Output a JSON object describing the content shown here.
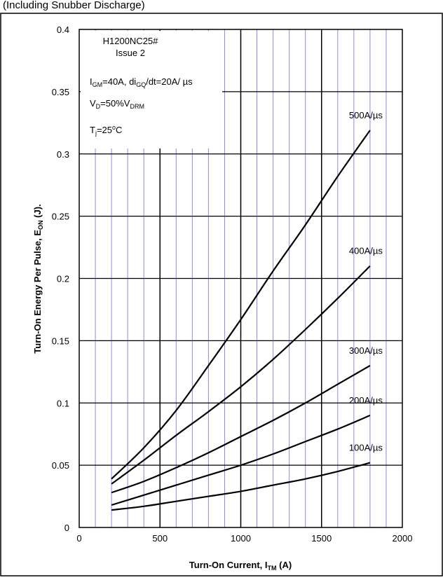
{
  "header_text": "(Including Snubber Discharge)",
  "chart_data": {
    "type": "line",
    "xlabel": "Turn-On Current, I",
    "xlabel_sub": "TM",
    "xlabel_unit": " (A)",
    "ylabel": "Turn-On Energy Per Pulse, E",
    "ylabel_sub": "ON",
    "ylabel_unit": " (J).",
    "xlim": [
      0,
      2000
    ],
    "ylim": [
      0,
      0.4
    ],
    "x_ticks": [
      "0",
      "500",
      "1000",
      "1500",
      "2000"
    ],
    "y_ticks": [
      "0",
      "0.05",
      "0.1",
      "0.15",
      "0.2",
      "0.25",
      "0.3",
      "0.35",
      "0.4"
    ],
    "grid": true,
    "legend_lines": {
      "device": "H1200NC25#",
      "issue": "Issue 2",
      "igm": "I",
      "igm_sub": "GM",
      "igm_rest": "=40A, di",
      "digq_sub": "GQ",
      "digq_rest": "/dt=20A/ µs",
      "vd": "V",
      "vd_sub": "D",
      "vd_rest": "=50%V",
      "vdrm_sub": "DRM",
      "tj": "T",
      "tj_sub": "j",
      "tj_rest": "=25",
      "tj_sup": "o",
      "tj_unit": "C"
    },
    "series": [
      {
        "name": "500A/µs",
        "x": [
          200,
          400,
          600,
          800,
          1000,
          1200,
          1400,
          1600,
          1800
        ],
        "y": [
          0.039,
          0.064,
          0.094,
          0.13,
          0.167,
          0.206,
          0.243,
          0.282,
          0.319
        ]
      },
      {
        "name": "400A/µs",
        "x": [
          200,
          400,
          600,
          800,
          1000,
          1200,
          1400,
          1600,
          1800
        ],
        "y": [
          0.035,
          0.054,
          0.074,
          0.093,
          0.113,
          0.135,
          0.159,
          0.184,
          0.21
        ]
      },
      {
        "name": "300A/µs",
        "x": [
          200,
          400,
          600,
          800,
          1000,
          1200,
          1400,
          1600,
          1800
        ],
        "y": [
          0.028,
          0.037,
          0.048,
          0.06,
          0.073,
          0.086,
          0.1,
          0.115,
          0.13
        ]
      },
      {
        "name": "200A/µs",
        "x": [
          200,
          400,
          600,
          800,
          1000,
          1200,
          1400,
          1600,
          1800
        ],
        "y": [
          0.018,
          0.026,
          0.034,
          0.042,
          0.05,
          0.059,
          0.069,
          0.079,
          0.09
        ]
      },
      {
        "name": "100A/µs",
        "x": [
          200,
          400,
          600,
          800,
          1000,
          1200,
          1400,
          1600,
          1800
        ],
        "y": [
          0.014,
          0.017,
          0.021,
          0.025,
          0.029,
          0.034,
          0.039,
          0.045,
          0.052
        ]
      }
    ]
  }
}
